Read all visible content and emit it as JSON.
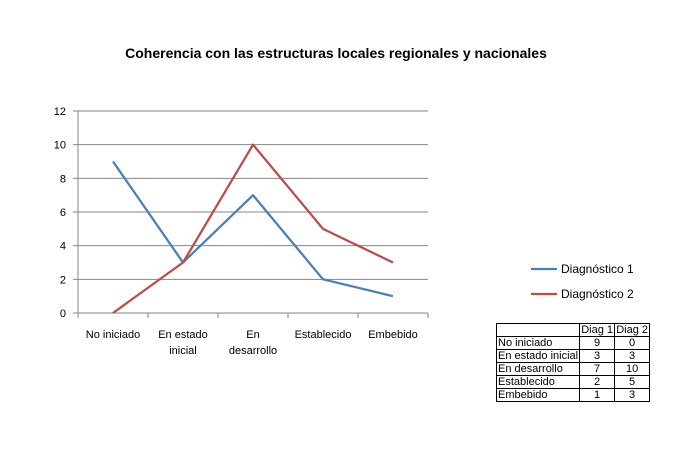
{
  "chart_data": {
    "type": "line",
    "title": "Coherencia con las estructuras locales regionales y nacionales",
    "categories": [
      [
        "No iniciado"
      ],
      [
        "En estado",
        "inicial"
      ],
      [
        "En",
        "desarrollo"
      ],
      [
        "Establecido"
      ],
      [
        "Embebido"
      ]
    ],
    "series": [
      {
        "name": "Diagnóstico 1",
        "values": [
          9,
          3,
          7,
          2,
          1
        ],
        "color": "#4A7EBB"
      },
      {
        "name": "Diagnóstico 2",
        "values": [
          0,
          3,
          10,
          5,
          3
        ],
        "color": "#BE4B48"
      }
    ],
    "ylim": [
      0,
      12
    ],
    "yticks": [
      0,
      2,
      4,
      6,
      8,
      10,
      12
    ],
    "grid": true,
    "legend": "right"
  },
  "table": {
    "headers": [
      "",
      "Diag 1",
      "Diag 2"
    ],
    "rows": [
      [
        "No iniciado",
        "9",
        "0"
      ],
      [
        "En estado inicial",
        "3",
        "3"
      ],
      [
        "En desarrollo",
        "7",
        "10"
      ],
      [
        "Establecido",
        "2",
        "5"
      ],
      [
        "Embebido",
        "1",
        "3"
      ]
    ]
  }
}
